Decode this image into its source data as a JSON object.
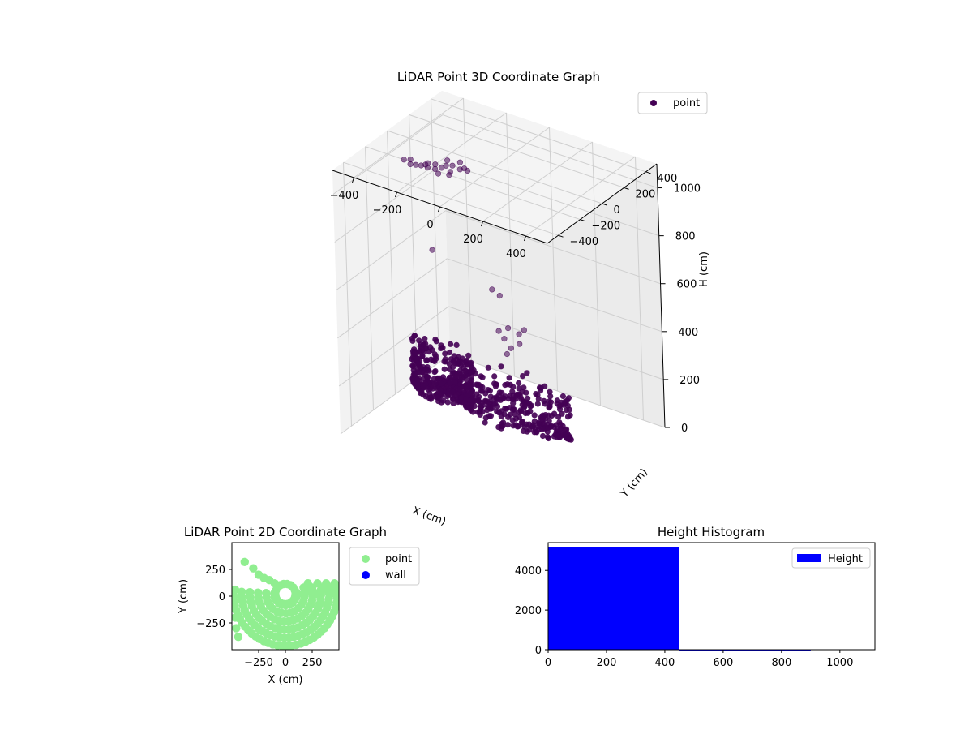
{
  "chart_data": [
    {
      "type": "scatter",
      "projection": "3d",
      "title": "LiDAR Point 3D Coordinate Graph",
      "xlabel": "X (cm)",
      "ylabel": "Y (cm)",
      "zlabel": "H (cm)",
      "xlim": [
        -500,
        500
      ],
      "ylim": [
        -500,
        500
      ],
      "zlim": [
        1100,
        0
      ],
      "xticks": [
        -400,
        -200,
        0,
        200,
        400
      ],
      "yticks": [
        -400,
        -200,
        0,
        200,
        400
      ],
      "zticks": [
        0,
        200,
        400,
        600,
        800,
        1000
      ],
      "grid": true,
      "legend": {
        "placement": "top-right",
        "entries": [
          "point"
        ]
      },
      "series": [
        {
          "name": "point",
          "color": "#440154",
          "clusters": [
            {
              "description": "dense arc",
              "x_range": [
                -220,
                300
              ],
              "y_range": [
                -120,
                200
              ],
              "h_range": [
                40,
                220
              ]
            },
            {
              "description": "dense arc",
              "x_range": [
                -430,
                -150
              ],
              "y_range": [
                -100,
                150
              ],
              "h_range": [
                60,
                260
              ]
            }
          ],
          "points": [
            {
              "x": 0,
              "y": 60,
              "h": 300
            },
            {
              "x": 30,
              "y": 40,
              "h": 340
            },
            {
              "x": 60,
              "y": 60,
              "h": 360
            },
            {
              "x": 10,
              "y": 20,
              "h": 380
            },
            {
              "x": -20,
              "y": 30,
              "h": 400
            },
            {
              "x": 80,
              "y": 20,
              "h": 420
            },
            {
              "x": 40,
              "y": 0,
              "h": 440
            },
            {
              "x": 110,
              "y": 10,
              "h": 450
            },
            {
              "x": -30,
              "y": 0,
              "h": 580
            },
            {
              "x": 0,
              "y": 10,
              "h": 560
            },
            {
              "x": -200,
              "y": -200,
              "h": 760
            },
            {
              "x": -250,
              "y": -120,
              "h": 1080
            },
            {
              "x": -190,
              "y": -60,
              "h": 1090
            },
            {
              "x": -170,
              "y": -150,
              "h": 1095
            },
            {
              "x": -300,
              "y": -180,
              "h": 1100
            },
            {
              "x": -320,
              "y": -200,
              "h": 1100
            },
            {
              "x": -280,
              "y": -220,
              "h": 1100
            },
            {
              "x": -260,
              "y": -210,
              "h": 1100
            },
            {
              "x": -230,
              "y": -180,
              "h": 1100
            },
            {
              "x": -210,
              "y": -200,
              "h": 1100
            },
            {
              "x": -180,
              "y": -190,
              "h": 1100
            },
            {
              "x": -160,
              "y": -130,
              "h": 1100
            },
            {
              "x": -150,
              "y": -220,
              "h": 1100
            },
            {
              "x": -120,
              "y": -170,
              "h": 1100
            },
            {
              "x": -100,
              "y": -120,
              "h": 1100
            },
            {
              "x": -130,
              "y": -60,
              "h": 1100
            },
            {
              "x": -140,
              "y": -110,
              "h": 1100
            },
            {
              "x": -110,
              "y": -200,
              "h": 1100
            },
            {
              "x": -90,
              "y": -100,
              "h": 1100
            },
            {
              "x": -70,
              "y": -110,
              "h": 1100
            },
            {
              "x": -240,
              "y": -200,
              "h": 1100
            },
            {
              "x": -200,
              "y": -150,
              "h": 1100
            }
          ]
        }
      ]
    },
    {
      "type": "scatter",
      "title": "LiDAR Point 2D Coordinate Graph",
      "xlabel": "X (cm)",
      "ylabel": "Y (cm)",
      "xlim": [
        -500,
        500
      ],
      "ylim": [
        -500,
        500
      ],
      "xticks": [
        -250,
        0,
        250
      ],
      "yticks": [
        250,
        0,
        -250
      ],
      "legend": {
        "placement": "outside-right",
        "entries": [
          "point",
          "wall"
        ]
      },
      "series": [
        {
          "name": "point",
          "color": "#90ee90",
          "shape": "concentric arcs centered near (0, 0) with radii 100-500 in the lower half, plus a diagonal trail toward (-380, 320) and a row near y=80 on the right"
        },
        {
          "name": "wall",
          "color": "#0000ff",
          "points": []
        }
      ]
    },
    {
      "type": "bar",
      "title": "Height Histogram",
      "xlim": [
        0,
        1120
      ],
      "ylim": [
        0,
        5400
      ],
      "xticks": [
        0,
        200,
        400,
        600,
        800,
        1000
      ],
      "yticks": [
        0,
        2000,
        4000
      ],
      "legend": {
        "placement": "top-right",
        "entries": [
          "Height"
        ]
      },
      "series": [
        {
          "name": "Height",
          "color": "#0000ff",
          "bins": [
            {
              "x0": 0,
              "x1": 450,
              "count": 5180
            },
            {
              "x0": 450,
              "x1": 900,
              "count": 20
            }
          ]
        }
      ]
    }
  ]
}
